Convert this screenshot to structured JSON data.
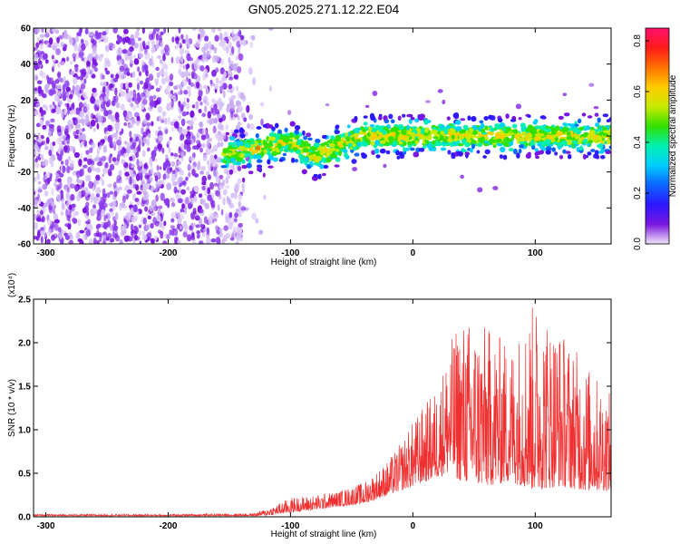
{
  "title": "GN05.2025.271.12.22.E04",
  "chart_data": [
    {
      "type": "heatmap",
      "xlabel": "Height of straight line (km)",
      "ylabel": "Frequency (Hz)",
      "xlim": [
        -310,
        162
      ],
      "ylim": [
        -60,
        60
      ],
      "xticks": [
        -300,
        -200,
        -100,
        0,
        100
      ],
      "yticks": [
        60,
        40,
        20,
        0,
        -20,
        -40,
        -60
      ],
      "noise_region_x": [
        -310,
        -138
      ],
      "signal_band": {
        "start_x": -155,
        "center_freq": [
          [
            -155,
            -10
          ],
          [
            -120,
            -6
          ],
          [
            -100,
            -3
          ],
          [
            -80,
            -12
          ],
          [
            -60,
            -5
          ],
          [
            -40,
            0
          ],
          [
            0,
            0
          ],
          [
            50,
            0
          ],
          [
            100,
            0
          ],
          [
            162,
            0
          ]
        ]
      },
      "colorbar": {
        "label": "Normalized spectral amplitude",
        "range": [
          0.0,
          0.85
        ],
        "ticks": [
          "0.0",
          "0.2",
          "0.4",
          "0.6",
          "0.8"
        ],
        "colors": [
          "#f2e6fb",
          "#7a16e0",
          "#2c17ff",
          "#0b64ff",
          "#00cfff",
          "#00f0b0",
          "#32e000",
          "#c8ea00",
          "#ffcc00",
          "#ff7000",
          "#ff1a1a",
          "#ff1070"
        ]
      }
    },
    {
      "type": "line",
      "xlabel": "Height of straight line (km)",
      "ylabel": "SNR (10 * v/v)",
      "y_multiplier": "(x10⁴)",
      "xlim": [
        -310,
        162
      ],
      "ylim": [
        0,
        2.5
      ],
      "xticks": [
        -300,
        -200,
        -100,
        0,
        100
      ],
      "yticks": [
        "0.0",
        "0.5",
        "1.0",
        "1.5",
        "2.0",
        "2.5"
      ],
      "line_color": "#f03030",
      "envelope": {
        "x": [
          -310,
          -200,
          -130,
          -115,
          -100,
          -80,
          -60,
          -40,
          -20,
          -10,
          0,
          20,
          30,
          40,
          60,
          80,
          100,
          120,
          140,
          162
        ],
        "baseline": [
          0.01,
          0.01,
          0.01,
          0.02,
          0.05,
          0.08,
          0.12,
          0.15,
          0.25,
          0.3,
          0.35,
          0.45,
          0.5,
          0.4,
          0.35,
          0.4,
          0.3,
          0.35,
          0.3,
          0.3
        ],
        "peak": [
          0.03,
          0.03,
          0.04,
          0.12,
          0.22,
          0.25,
          0.3,
          0.4,
          0.65,
          0.85,
          1.1,
          1.5,
          2.0,
          2.3,
          2.2,
          2.0,
          2.5,
          2.2,
          1.8,
          1.4
        ]
      }
    }
  ]
}
